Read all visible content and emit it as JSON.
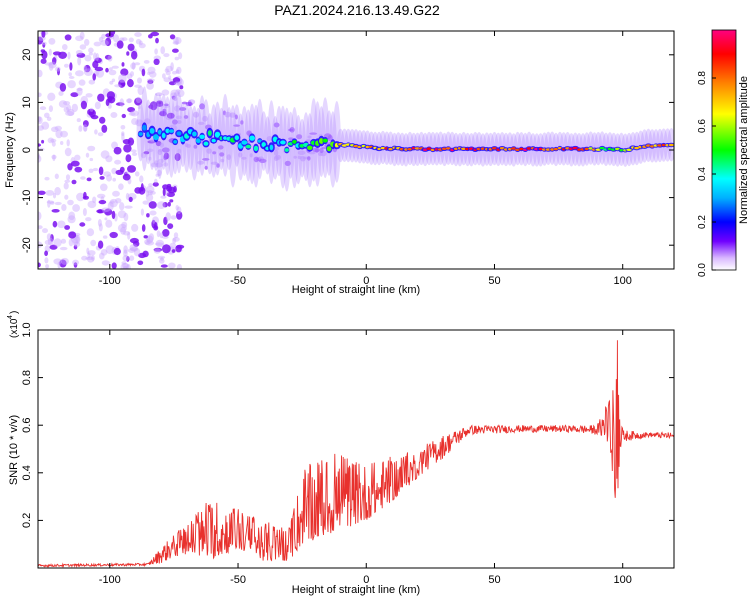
{
  "title": "PAZ1.2024.216.13.49.G22",
  "chart_data": [
    {
      "type": "heatmap",
      "xlabel": "Height of straight line (km)",
      "ylabel": "Frequency (Hz)",
      "xlim": [
        -128,
        120
      ],
      "ylim": [
        -25,
        25
      ],
      "xticks": [
        -100,
        -50,
        0,
        50,
        100
      ],
      "yticks": [
        -20,
        -10,
        0,
        10,
        20
      ],
      "colorbar": {
        "label": "Normalized spectral amplitude",
        "range": [
          0,
          1
        ],
        "ticks": [
          0.0,
          0.2,
          0.4,
          0.6,
          0.8
        ],
        "colormap": [
          "#ffffff",
          "#b070ff",
          "#7000ff",
          "#0000ff",
          "#00ffff",
          "#00ff00",
          "#ffff00",
          "#ff8000",
          "#ff0000",
          "#ff0080"
        ]
      },
      "ridge": {
        "x": [
          -85,
          -75,
          -65,
          -55,
          -45,
          -35,
          -25,
          -15,
          -5,
          5,
          15,
          25,
          35,
          45,
          55,
          65,
          75,
          85,
          95,
          100,
          110,
          120
        ],
        "frequency": [
          4.0,
          3.0,
          2.5,
          2.0,
          1.5,
          1.2,
          0.8,
          1.5,
          0.8,
          0.4,
          0.2,
          0.2,
          0.2,
          0.2,
          0.2,
          0.2,
          0.2,
          0.2,
          0.3,
          0.0,
          0.8,
          1.0
        ],
        "amplitude": [
          0.3,
          0.35,
          0.4,
          0.45,
          0.4,
          0.35,
          0.5,
          0.6,
          0.75,
          0.8,
          0.85,
          0.9,
          0.9,
          0.9,
          0.9,
          0.95,
          0.9,
          0.85,
          0.5,
          0.6,
          0.8,
          0.8
        ]
      },
      "noise_region": {
        "x_from": -128,
        "x_to": -80,
        "frequency_range": [
          -25,
          25
        ],
        "amplitude": 0.1
      }
    },
    {
      "type": "line",
      "xlabel": "Height of straight line (km)",
      "ylabel": "SNR (10 * v/v)",
      "scale_label": "(x10",
      "scale_exponent": "4",
      "xlim": [
        -128,
        120
      ],
      "ylim": [
        0,
        1.0
      ],
      "xticks": [
        -100,
        -50,
        0,
        50,
        100
      ],
      "yticks": [
        0.2,
        0.4,
        0.6,
        0.8,
        1.0
      ],
      "series": [
        {
          "color": "#e8312d",
          "envelope": {
            "x": [
              -128,
              -85,
              -80,
              -70,
              -60,
              -50,
              -40,
              -30,
              -25,
              -20,
              -10,
              0,
              10,
              20,
              30,
              40,
              60,
              80,
              90,
              95,
              96,
              97,
              98,
              99,
              100,
              110,
              120
            ],
            "low": [
              0.005,
              0.01,
              0.02,
              0.06,
              0.04,
              0.08,
              0.03,
              0.03,
              0.1,
              0.12,
              0.16,
              0.2,
              0.28,
              0.38,
              0.46,
              0.56,
              0.57,
              0.57,
              0.56,
              0.52,
              0.4,
              0.27,
              0.3,
              0.5,
              0.53,
              0.55,
              0.54
            ],
            "high": [
              0.015,
              0.02,
              0.09,
              0.19,
              0.3,
              0.25,
              0.2,
              0.17,
              0.42,
              0.45,
              0.49,
              0.44,
              0.47,
              0.5,
              0.56,
              0.6,
              0.6,
              0.6,
              0.6,
              0.72,
              0.78,
              0.65,
              1.0,
              0.7,
              0.58,
              0.57,
              0.57
            ]
          }
        }
      ]
    }
  ]
}
